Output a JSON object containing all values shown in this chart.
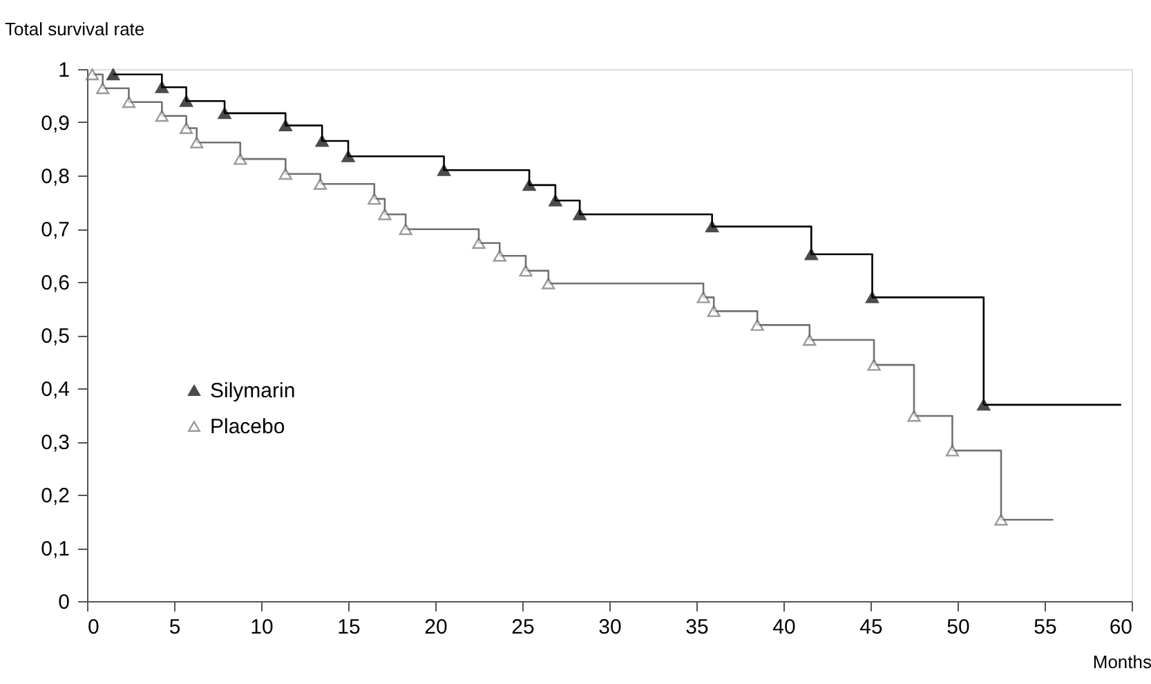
{
  "chart_data": {
    "type": "step",
    "ylabel": "Total survival rate",
    "xlabel": "Months",
    "xlim": [
      0,
      60
    ],
    "xticks": [
      0,
      5,
      10,
      15,
      20,
      25,
      30,
      35,
      40,
      45,
      50,
      55,
      60
    ],
    "ylim": [
      0,
      1
    ],
    "yticks": [
      {
        "value": 0,
        "label": "0"
      },
      {
        "value": 0.1,
        "label": "0,1"
      },
      {
        "value": 0.2,
        "label": "0,2"
      },
      {
        "value": 0.3,
        "label": "0,3"
      },
      {
        "value": 0.4,
        "label": "0,4"
      },
      {
        "value": 0.5,
        "label": "0,5"
      },
      {
        "value": 0.6,
        "label": "0,6"
      },
      {
        "value": 0.7,
        "label": "0,7"
      },
      {
        "value": 0.8,
        "label": "0,8"
      },
      {
        "value": 0.9,
        "label": "0,9"
      },
      {
        "value": 1,
        "label": "1"
      }
    ],
    "grid": false,
    "legend": "left",
    "marker": "triangle",
    "line_style": "solid",
    "series": [
      {
        "name": "Silymarin",
        "color": "#000000",
        "x": [
          1.5,
          4.3,
          5.7,
          7.9,
          11.4,
          13.5,
          15.0,
          20.5,
          25.4,
          26.9,
          28.3,
          35.9,
          41.6,
          45.1,
          51.5
        ],
        "values": [
          0.99,
          0.966,
          0.94,
          0.917,
          0.894,
          0.865,
          0.836,
          0.81,
          0.782,
          0.753,
          0.727,
          0.704,
          0.652,
          0.571,
          0.369
        ]
      },
      {
        "name": "Placebo",
        "color": "#707070",
        "x": [
          0.3,
          0.9,
          2.4,
          4.3,
          5.7,
          6.3,
          8.8,
          11.4,
          13.4,
          16.5,
          17.1,
          18.3,
          22.5,
          23.7,
          25.2,
          26.5,
          35.4,
          36.0,
          38.5,
          41.5,
          45.2,
          47.5,
          49.7,
          52.5
        ],
        "values": [
          0.99,
          0.964,
          0.938,
          0.912,
          0.889,
          0.862,
          0.831,
          0.803,
          0.784,
          0.756,
          0.727,
          0.699,
          0.673,
          0.649,
          0.621,
          0.597,
          0.571,
          0.545,
          0.519,
          0.491,
          0.444,
          0.348,
          0.283,
          0.153
        ]
      },
      {
        "color": "#000000",
        "marker": "none",
        "x": [
          51.5,
          59.4
        ],
        "values": [
          0.369,
          0.369
        ]
      },
      {
        "color": "#707070",
        "marker": "none",
        "x": [
          52.5,
          55.5
        ],
        "values": [
          0.153,
          0.153
        ]
      }
    ]
  }
}
